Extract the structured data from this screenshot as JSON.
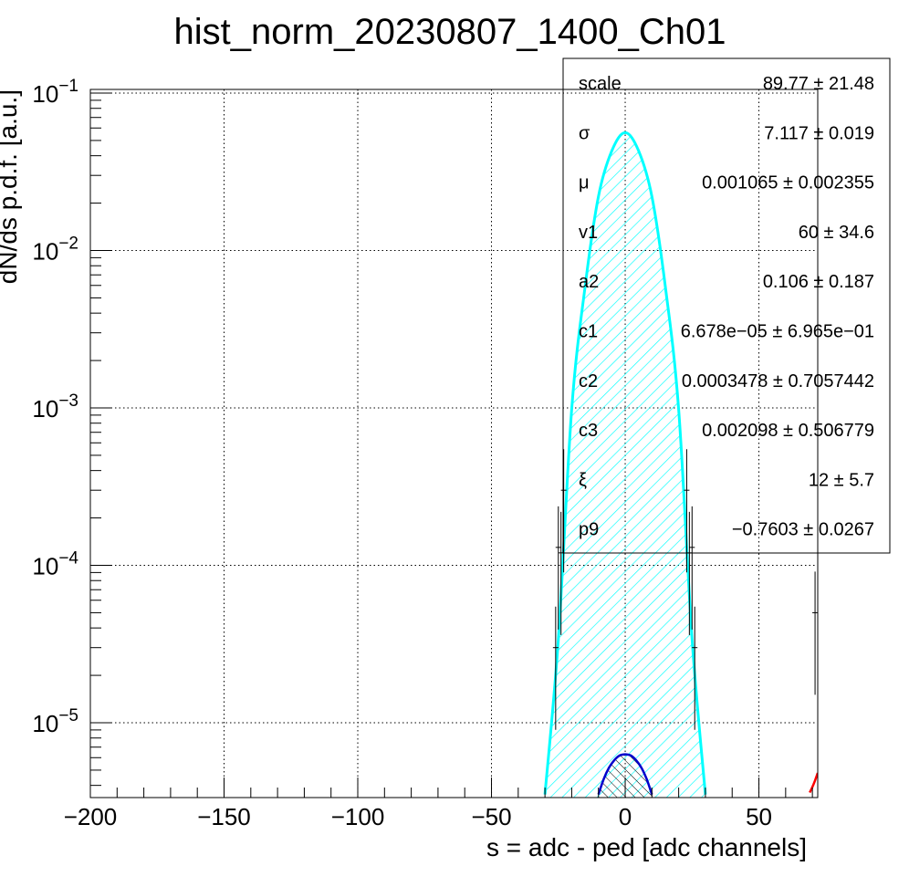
{
  "chart_data": {
    "type": "line",
    "title": "hist_norm_20230807_1400_Ch01",
    "xlabel": "s = adc - ped [adc channels]",
    "ylabel": "dN/ds p.d.f. [a.u.]",
    "xlim": [
      -200,
      72
    ],
    "ylim": [
      3.5e-06,
      0.11
    ],
    "yscale": "log",
    "grid": true,
    "x_ticks": [
      -200,
      -150,
      -100,
      -50,
      0,
      50
    ],
    "x_tick_labels": [
      "−200",
      "−150",
      "−100",
      "−50",
      "0",
      "50"
    ],
    "y_ticks": [
      {
        "value": 1e-05,
        "base": "10",
        "exp": "−5"
      },
      {
        "value": 0.0001,
        "base": "10",
        "exp": "−4"
      },
      {
        "value": 0.001,
        "base": "10",
        "exp": "−3"
      },
      {
        "value": 0.01,
        "base": "10",
        "exp": "−2"
      },
      {
        "value": 0.1,
        "base": "10",
        "exp": "−1"
      }
    ],
    "series": [
      {
        "role": "fit-total",
        "color": "#00ffff",
        "x": [
          -30,
          -25,
          -20,
          -15,
          -10,
          -5,
          0,
          5,
          10,
          15,
          20,
          25,
          30
        ],
        "y": [
          3.5e-06,
          3.4e-05,
          0.00098,
          0.0059,
          0.022,
          0.043,
          0.056,
          0.043,
          0.022,
          0.0059,
          0.00098,
          3.4e-05,
          3.5e-06
        ]
      },
      {
        "role": "fit-component",
        "color": "#0000cc",
        "x": [
          -10,
          -8,
          -6,
          -4,
          -2,
          0,
          2,
          4,
          6,
          8,
          10
        ],
        "y": [
          3.5e-06,
          4.4e-06,
          5.2e-06,
          5.8e-06,
          6.2e-06,
          6.3e-06,
          6.2e-06,
          5.8e-06,
          5.2e-06,
          4.4e-06,
          3.5e-06
        ]
      },
      {
        "role": "fit-tail",
        "color": "#ff0000",
        "x": [
          69,
          70,
          71,
          72
        ],
        "y": [
          3.6e-06,
          3.9e-06,
          4.3e-06,
          4.8e-06
        ]
      }
    ],
    "data_points": {
      "color": "#000000",
      "x": [
        -26,
        -25,
        -24,
        -23,
        23,
        24,
        25,
        26,
        71
      ],
      "y": [
        3e-05,
        0.00013,
        0.00012,
        0.0003,
        0.0003,
        0.00012,
        0.00013,
        3e-05,
        5e-05
      ]
    },
    "stats_box": [
      {
        "name": "scale",
        "value": "89.77 ± 21.48"
      },
      {
        "name": "σ",
        "value": "7.117 ± 0.019"
      },
      {
        "name": "μ",
        "value": "0.001065 ± 0.002355"
      },
      {
        "name": "v1",
        "value": "60 ± 34.6"
      },
      {
        "name": "a2",
        "value": "0.106 ± 0.187"
      },
      {
        "name": "c1",
        "value": "6.678e−05 ± 6.965e−01"
      },
      {
        "name": "c2",
        "value": "0.0003478 ± 0.7057442"
      },
      {
        "name": "c3",
        "value": "0.002098 ± 0.506779"
      },
      {
        "name": "ξ",
        "value": "12 ± 5.7"
      },
      {
        "name": "p9",
        "value": "−0.7603 ± 0.0267"
      }
    ]
  }
}
